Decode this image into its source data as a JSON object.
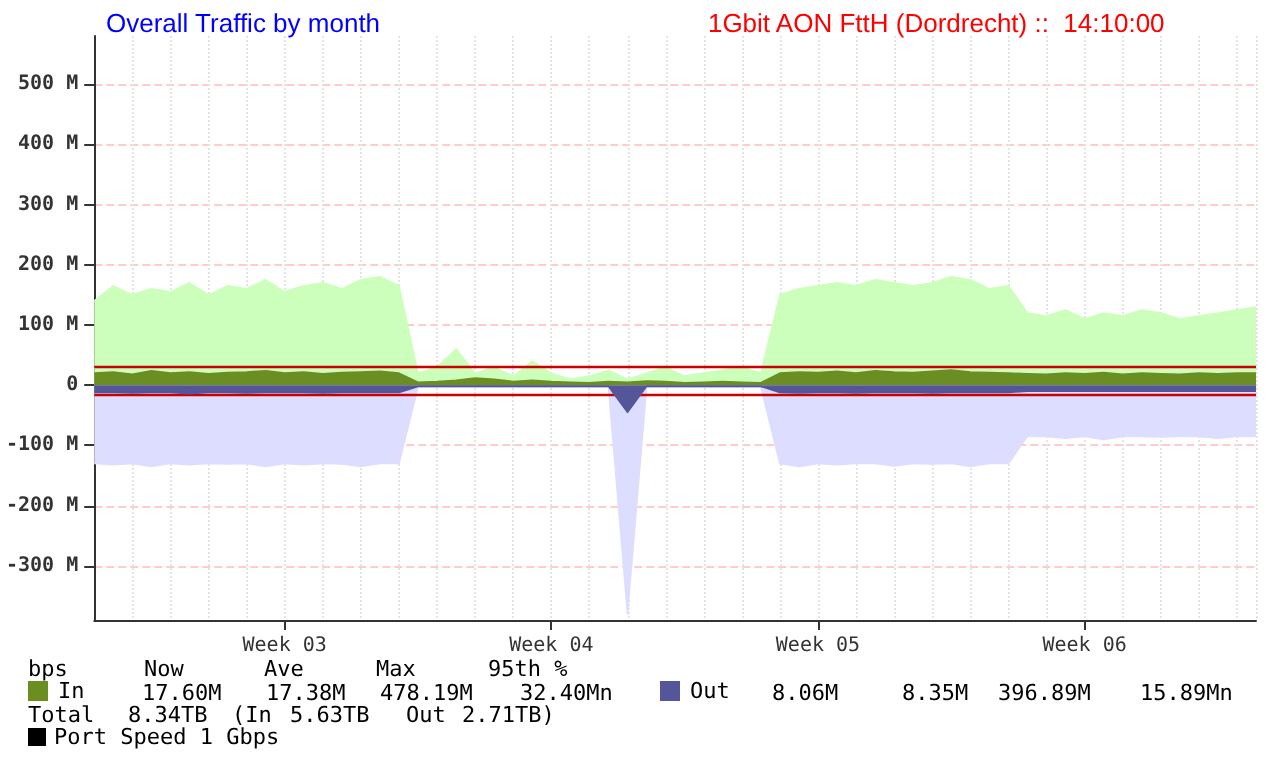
{
  "chart_data": {
    "type": "area",
    "title": "Overall Traffic by month",
    "subtitle": "1Gbit AON FttH (Dordrecht) ::  14:10:00",
    "categories": [
      null,
      null,
      null,
      null,
      null,
      null,
      null,
      null,
      null,
      null,
      "Week 03",
      null,
      null,
      null,
      null,
      null,
      null,
      null,
      null,
      null,
      null,
      null,
      null,
      null,
      "Week 04",
      null,
      null,
      null,
      null,
      null,
      null,
      null,
      null,
      null,
      null,
      null,
      null,
      null,
      "Week 05",
      null,
      null,
      null,
      null,
      null,
      null,
      null,
      null,
      null,
      null,
      null,
      null,
      null,
      "Week 06",
      null,
      null,
      null,
      null,
      null,
      null,
      null,
      null,
      null
    ],
    "series": [
      {
        "color": "#ccffbb",
        "values": [
          140,
          165,
          150,
          160,
          155,
          170,
          150,
          165,
          160,
          175,
          155,
          165,
          170,
          160,
          175,
          180,
          165,
          20,
          30,
          60,
          20,
          30,
          15,
          40,
          20,
          10,
          15,
          25,
          10,
          20,
          30,
          15,
          20,
          25,
          30,
          20,
          150,
          160,
          165,
          170,
          165,
          175,
          170,
          165,
          170,
          180,
          175,
          160,
          165,
          120,
          115,
          125,
          110,
          120,
          115,
          125,
          120,
          110,
          115,
          120,
          125,
          130
        ]
      },
      {
        "name": "In",
        "color": "#6b8e23",
        "values": [
          20,
          22,
          18,
          24,
          20,
          22,
          19,
          21,
          22,
          24,
          20,
          22,
          19,
          21,
          22,
          23,
          20,
          5,
          6,
          8,
          12,
          10,
          6,
          8,
          6,
          5,
          4,
          6,
          5,
          7,
          6,
          4,
          5,
          6,
          5,
          4,
          20,
          22,
          21,
          23,
          20,
          24,
          22,
          21,
          23,
          25,
          22,
          21,
          20,
          19,
          18,
          20,
          19,
          21,
          18,
          20,
          19,
          18,
          20,
          19,
          20,
          20
        ]
      },
      {
        "color": "#ddddff",
        "values": [
          -130,
          -132,
          -130,
          -135,
          -130,
          -132,
          -130,
          -131,
          -130,
          -135,
          -130,
          -132,
          -130,
          -131,
          -135,
          -130,
          -130,
          -3,
          -3,
          -3,
          -3,
          -3,
          -3,
          -3,
          -3,
          -3,
          -3,
          -3,
          -380,
          -3,
          -3,
          -3,
          -3,
          -3,
          -3,
          -3,
          -130,
          -135,
          -130,
          -132,
          -130,
          -130,
          -134,
          -130,
          -131,
          -130,
          -135,
          -130,
          -130,
          -85,
          -85,
          -88,
          -85,
          -90,
          -85,
          -85,
          -86,
          -85,
          -85,
          -88,
          -85,
          -85
        ]
      },
      {
        "name": "Out",
        "color": "#555599",
        "values": [
          -12,
          -12,
          -13,
          -12,
          -12,
          -14,
          -12,
          -12,
          -13,
          -12,
          -12,
          -12,
          -13,
          -12,
          -12,
          -12,
          -12,
          -2,
          -2,
          -2,
          -2,
          -2,
          -2,
          -2,
          -2,
          -2,
          -2,
          -2,
          -45,
          -2,
          -2,
          -2,
          -2,
          -2,
          -2,
          -2,
          -12,
          -13,
          -12,
          -12,
          -13,
          -12,
          -12,
          -12,
          -13,
          -12,
          -12,
          -12,
          -12,
          -10,
          -10,
          -10,
          -10,
          -10,
          -10,
          -10,
          -10,
          -10,
          -10,
          -10,
          -10,
          -10
        ]
      }
    ],
    "ylim": [
      -390,
      580
    ],
    "yticks": [
      {
        "value": -300,
        "label": "-300 M"
      },
      {
        "value": -200,
        "label": "-200 M"
      },
      {
        "value": -100,
        "label": "-100 M"
      },
      0,
      {
        "value": 100,
        "label": "100 M"
      },
      {
        "value": 200,
        "label": "200 M"
      },
      {
        "value": 300,
        "label": "300 M"
      },
      {
        "value": 400,
        "label": "400 M"
      },
      {
        "value": 500,
        "label": "500 M"
      }
    ],
    "ref_lines": [
      {
        "axis": "y",
        "value": 32.4,
        "color": "#cc0000"
      },
      {
        "axis": "y",
        "value": -15.89,
        "color": "#cc0000"
      }
    ],
    "annotations": [
      "bps",
      "Now",
      "Ave",
      "Max",
      "95th %",
      "17.60M",
      "17.38M",
      "478.19M",
      "32.40Mn",
      "8.06M",
      "8.35M",
      "396.89M",
      "15.89Mn",
      "Total",
      "8.34TB",
      "(In",
      "5.63TB",
      "Out",
      "2.71TB)",
      "Port Speed 1 Gbps"
    ],
    "grid": true,
    "legend": "bottom"
  }
}
